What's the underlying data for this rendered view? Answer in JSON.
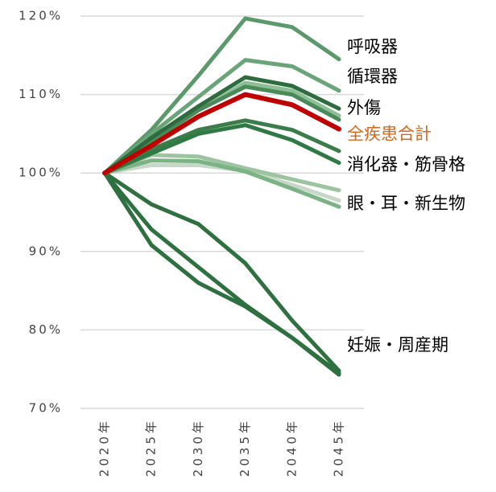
{
  "chart_data": {
    "type": "line",
    "categories": [
      "2020年",
      "2025年",
      "2030年",
      "2035年",
      "2040年",
      "2045年"
    ],
    "ylim": [
      70,
      120
    ],
    "yticks": [
      {
        "value": 70,
        "label": "70%"
      },
      {
        "value": 80,
        "label": "80%"
      },
      {
        "value": 90,
        "label": "90%"
      },
      {
        "value": 100,
        "label": "100%"
      },
      {
        "value": 110,
        "label": "110%"
      },
      {
        "value": 120,
        "label": "120%"
      }
    ],
    "grid": true,
    "series": [
      {
        "color": "#c8d8c8",
        "values": [
          100,
          101,
          101,
          100.3,
          98.5,
          96.5
        ]
      },
      {
        "color": "#9cc4a0",
        "values": [
          100,
          102.3,
          102.1,
          100.6,
          99.2,
          97.8
        ]
      },
      {
        "color": "#7bb385",
        "values": [
          100,
          101.6,
          101.5,
          100.2,
          98,
          95.7
        ]
      },
      {
        "color": "#5a9a6a",
        "values": [
          100,
          105.5,
          112.4,
          119.7,
          118.6,
          114.5
        ]
      },
      {
        "color": "#6aa57a",
        "values": [
          100,
          105,
          109.7,
          114.4,
          113.6,
          110.5
        ]
      },
      {
        "color": "#8cbf96",
        "values": [
          100,
          104,
          108,
          111.5,
          110.5,
          107.3
        ]
      },
      {
        "color": "#4a8a5a",
        "values": [
          100,
          104,
          108,
          111,
          110,
          106.8
        ]
      },
      {
        "color": "#2e6b3e",
        "values": [
          100,
          104.5,
          108.5,
          112.2,
          111.1,
          108.2
        ]
      },
      {
        "color": "#3a7d4a",
        "values": [
          100,
          103,
          105.5,
          106.7,
          105.5,
          102.8
        ]
      },
      {
        "color": "#2f7a44",
        "values": [
          100,
          102.5,
          105,
          106.1,
          104.2,
          101.3
        ]
      },
      {
        "color": "#2e7040",
        "values": [
          100,
          96,
          93.5,
          88.5,
          81.2,
          74.8
        ]
      },
      {
        "color": "#2e7040",
        "values": [
          100,
          92.8,
          88,
          83.2,
          79,
          74.5
        ]
      },
      {
        "color": "#2e7040",
        "values": [
          100,
          90.8,
          86,
          83,
          79,
          74.3
        ]
      },
      {
        "color": "#c00000",
        "values": [
          100,
          103.5,
          107.2,
          110,
          108.7,
          105.6
        ]
      }
    ],
    "annotations": [
      {
        "text": "呼吸器",
        "y": 116,
        "color": "#000000"
      },
      {
        "text": "循環器",
        "y": 112.2,
        "color": "#000000"
      },
      {
        "text": "外傷",
        "y": 108.2,
        "color": "#000000"
      },
      {
        "text": "全疾患合計",
        "y": 104.9,
        "color": "#d2691e"
      },
      {
        "text": "消化器・筋骨格",
        "y": 101,
        "color": "#000000"
      },
      {
        "text": "眼・耳・新生物",
        "y": 96,
        "color": "#000000"
      },
      {
        "text": "妊娠・周産期",
        "y": 78,
        "color": "#000000"
      }
    ]
  }
}
